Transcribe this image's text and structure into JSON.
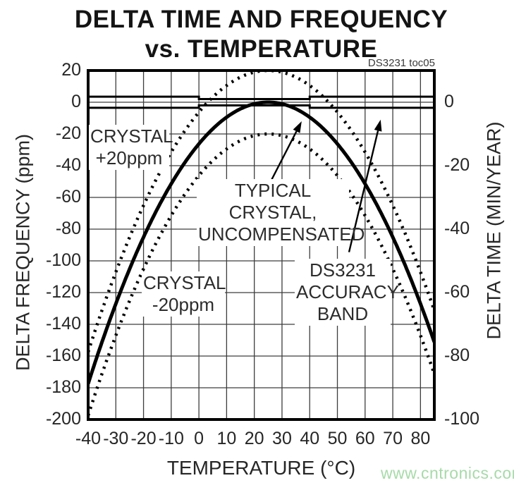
{
  "chart_data": {
    "type": "line",
    "title_line1": "DELTA TIME AND FREQUENCY",
    "title_line2": "vs. TEMPERATURE",
    "note": "DS3231 toc05",
    "xlabel": "TEMPERATURE (°C)",
    "ylabel_left": "DELTA FREQUENCY (ppm)",
    "ylabel_right": "DELTA TIME (MIN/YEAR)",
    "xlim": [
      -40,
      85
    ],
    "ylim_ppm": [
      -200,
      20
    ],
    "ylim_right_min_per_year": [
      -100,
      10
    ],
    "right_axis_ppm_per_min_per_year": 2,
    "grid": {
      "x_step_c": 10,
      "y_step_ppm": 20,
      "on": true
    },
    "x_ticks": [
      -40,
      -30,
      -20,
      -10,
      0,
      10,
      20,
      30,
      40,
      50,
      60,
      70,
      80
    ],
    "y_ticks_left_ppm": [
      20,
      0,
      -20,
      -40,
      -60,
      -80,
      -100,
      -120,
      -140,
      -160,
      -180,
      -200
    ],
    "y_ticks_right_min_per_year": [
      0,
      -20,
      -40,
      -60,
      -80,
      -100
    ],
    "series": [
      {
        "name": "TYPICAL CRYSTAL, UNCOMPENSATED",
        "style": "solid",
        "model": "parabola",
        "k_ppm_per_c2": -0.042,
        "turnover_c": 25,
        "offset_ppm": 0
      },
      {
        "name": "CRYSTAL +20ppm",
        "style": "dashed",
        "model": "parabola",
        "k_ppm_per_c2": -0.042,
        "turnover_c": 25,
        "offset_ppm": 20
      },
      {
        "name": "CRYSTAL -20ppm",
        "style": "dashed",
        "model": "parabola",
        "k_ppm_per_c2": -0.042,
        "turnover_c": 25,
        "offset_ppm": -20
      }
    ],
    "sample_points": {
      "temperature_c": [
        -40,
        -30,
        -20,
        -10,
        0,
        10,
        20,
        25,
        30,
        40,
        50,
        60,
        70,
        80,
        85
      ],
      "typical_crystal_ppm": [
        -177.5,
        -127.1,
        -85.1,
        -51.5,
        -26.3,
        -9.5,
        -1.1,
        0,
        -1.1,
        -9.5,
        -26.3,
        -51.5,
        -85.1,
        -127.1,
        -151.2
      ],
      "note": "CRYSTAL +20ppm and CRYSTAL -20ppm curves are the typical curve shifted +20 / -20 ppm"
    },
    "accuracy_band": {
      "name": "DS3231 ACCURACY BAND",
      "segments": [
        {
          "t_range_c": [
            -40,
            0
          ],
          "ppm": 3.5
        },
        {
          "t_range_c": [
            0,
            40
          ],
          "ppm": 2.0
        },
        {
          "t_range_c": [
            40,
            85
          ],
          "ppm": 3.5
        }
      ]
    },
    "annotations": {
      "labels": [
        {
          "id": "crystal_plus",
          "line1": "CRYSTAL",
          "line2": "+20ppm"
        },
        {
          "id": "typical",
          "line1": "TYPICAL CRYSTAL,",
          "line2": "UNCOMPENSATED"
        },
        {
          "id": "crystal_minus",
          "line1": "CRYSTAL",
          "line2": "-20ppm"
        },
        {
          "id": "band",
          "line1": "DS3231",
          "line2": "ACCURACY",
          "line3": "BAND"
        }
      ],
      "arrows": [
        {
          "name": "typical-crystal-arrow",
          "from_t_c": 26.2,
          "from_ppm": -49.0,
          "to_t_c": 37.1,
          "to_ppm": -12.0
        },
        {
          "name": "accuracy-band-arrow",
          "from_t_c": 54.2,
          "from_ppm": -94.5,
          "to_t_c": 65.6,
          "to_ppm": -11.0
        }
      ]
    },
    "colors": {
      "ink": "#000000",
      "grid": "#3d3d3d",
      "text": "#262626"
    }
  },
  "watermark": {
    "text": "www.cntronics.com",
    "color": "#a7daa9"
  }
}
